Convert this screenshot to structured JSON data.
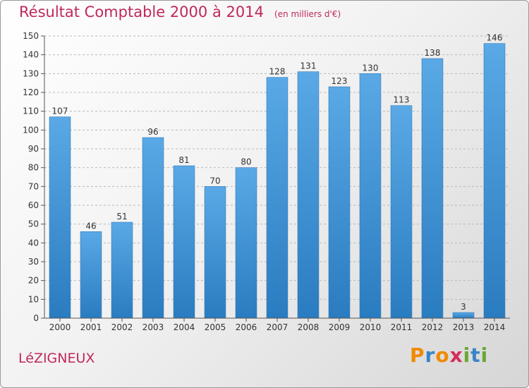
{
  "chart_data": {
    "type": "bar",
    "title": "Résultat Comptable 2000 à 2014",
    "subtitle": "(en milliers d'€)",
    "categories": [
      "2000",
      "2001",
      "2002",
      "2003",
      "2004",
      "2005",
      "2006",
      "2007",
      "2008",
      "2009",
      "2010",
      "2011",
      "2012",
      "2013",
      "2014"
    ],
    "values": [
      107,
      46,
      51,
      96,
      81,
      70,
      80,
      128,
      131,
      123,
      130,
      113,
      138,
      3,
      146
    ],
    "ylim": [
      0,
      150
    ],
    "ytick_step": 10,
    "xlabel": "",
    "ylabel": "",
    "grid": "horizontal dashed",
    "bar_color": "#5aa9e6",
    "bar_color_dark": "#2a7cc0"
  },
  "footer": {
    "commune": "LéZIGNEUX",
    "logo_letters": [
      "P",
      "r",
      "o",
      "x",
      "i",
      "t",
      "i"
    ],
    "logo_colors": [
      "#f08a00",
      "#3a84c8",
      "#f08a00",
      "#d22e5c",
      "#6aa832",
      "#3a84c8",
      "#6aa832"
    ]
  }
}
